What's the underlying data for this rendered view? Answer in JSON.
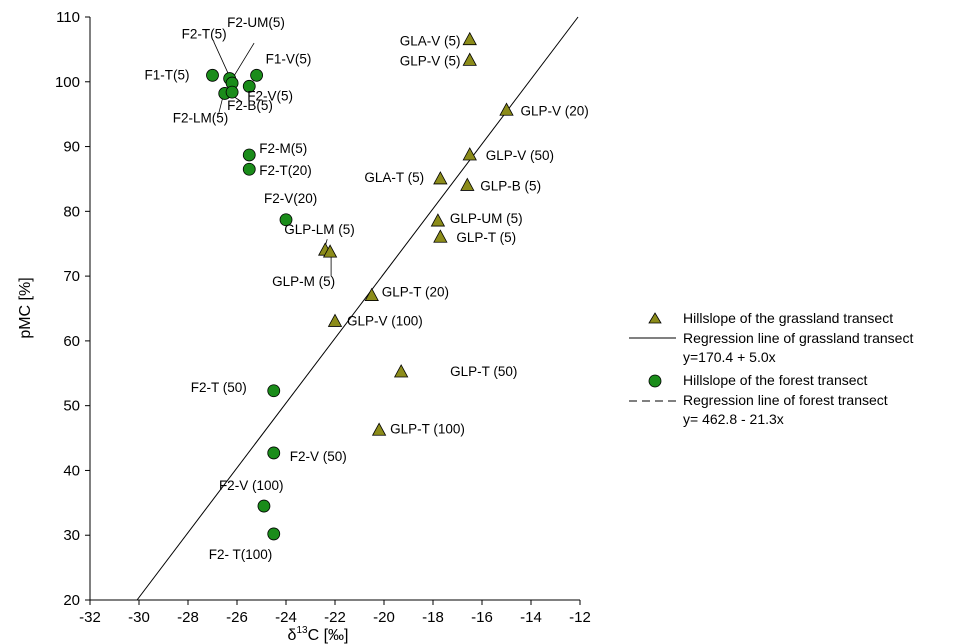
{
  "chart_data": {
    "type": "scatter",
    "xlabel_greek": "δ",
    "xlabel_sup": "13",
    "xlabel_rest": "C [‰]",
    "ylabel": "pMC [%]",
    "xlim": [
      -32,
      -12
    ],
    "ylim": [
      20,
      110
    ],
    "x_ticks": [
      -32,
      -30,
      -28,
      -26,
      -24,
      -22,
      -20,
      -18,
      -16,
      -14,
      -12
    ],
    "y_ticks": [
      20,
      30,
      40,
      50,
      60,
      70,
      80,
      90,
      100,
      110
    ],
    "grid": false,
    "legend_position": "right",
    "grassland": {
      "marker": "triangle",
      "color": "#8c8c1a",
      "points": [
        {
          "label": "GLA-V (5)",
          "x": -16.5,
          "y": 106.5
        },
        {
          "label": "GLP-V (5)",
          "x": -16.5,
          "y": 103.3
        },
        {
          "label": "GLP-V (20)",
          "x": -15.0,
          "y": 95.6
        },
        {
          "label": "GLP-V (50)",
          "x": -16.5,
          "y": 88.7
        },
        {
          "label": "GLA-T (5)",
          "x": -17.7,
          "y": 85.0
        },
        {
          "label": "GLP-B (5)",
          "x": -16.6,
          "y": 84.0
        },
        {
          "label": "GLP-UM (5)",
          "x": -17.8,
          "y": 78.5
        },
        {
          "label": "GLP-T (5)",
          "x": -17.7,
          "y": 76.0
        },
        {
          "label": "GLP-LM (5)",
          "x": -22.4,
          "y": 74.0
        },
        {
          "label": "GLP-M (5)",
          "x": -22.2,
          "y": 73.7
        },
        {
          "label": "GLP-T (20)",
          "x": -20.5,
          "y": 67.0
        },
        {
          "label": "GLP-V (100)",
          "x": -22.0,
          "y": 63.0
        },
        {
          "label": "GLP-T (50)",
          "x": -19.3,
          "y": 55.2
        },
        {
          "label": "GLP-T (100)",
          "x": -20.2,
          "y": 46.2
        }
      ]
    },
    "forest": {
      "marker": "circle",
      "color": "#1a8c1a",
      "points": [
        {
          "label": "F1-T(5)",
          "x": -27.0,
          "y": 101.0
        },
        {
          "label": "F2-T(5)",
          "x": -26.3,
          "y": 100.5
        },
        {
          "label": "F2-UM(5)",
          "x": -26.2,
          "y": 99.8
        },
        {
          "label": "F1-V(5)",
          "x": -25.2,
          "y": 101.0
        },
        {
          "label": "F2-V(5)",
          "x": -25.5,
          "y": 99.3
        },
        {
          "label": "F2-LM(5)",
          "x": -26.5,
          "y": 98.2
        },
        {
          "label": "F2-B(5)",
          "x": -26.2,
          "y": 98.4
        },
        {
          "label": "F2-M(5)",
          "x": -25.5,
          "y": 88.7
        },
        {
          "label": "F2-T(20)",
          "x": -25.5,
          "y": 86.5
        },
        {
          "label": "F2-V(20)",
          "x": -24.0,
          "y": 78.7
        },
        {
          "label": "F2-T (50)",
          "x": -24.5,
          "y": 52.3
        },
        {
          "label": "F2-V (50)",
          "x": -24.5,
          "y": 42.7
        },
        {
          "label": "F2-V (100)",
          "x": -24.9,
          "y": 34.5
        },
        {
          "label": "F2- T(100)",
          "x": -24.5,
          "y": 30.2
        }
      ]
    },
    "regression_grassland": {
      "intercept": 170.4,
      "slope": 5.0
    },
    "regression_forest": {
      "intercept": 462.8,
      "slope": -21.3
    },
    "legend": [
      {
        "kind": "triangle",
        "text": "Hillslope of the grassland transect"
      },
      {
        "kind": "solid-line",
        "text": "Regression line of grassland transect",
        "text2": "y=170.4 + 5.0x"
      },
      {
        "kind": "circle",
        "text": "Hillslope of the forest transect"
      },
      {
        "kind": "dashed-line",
        "text": "Regression line of forest transect",
        "text2": "y= 462.8 - 21.3x"
      }
    ]
  }
}
